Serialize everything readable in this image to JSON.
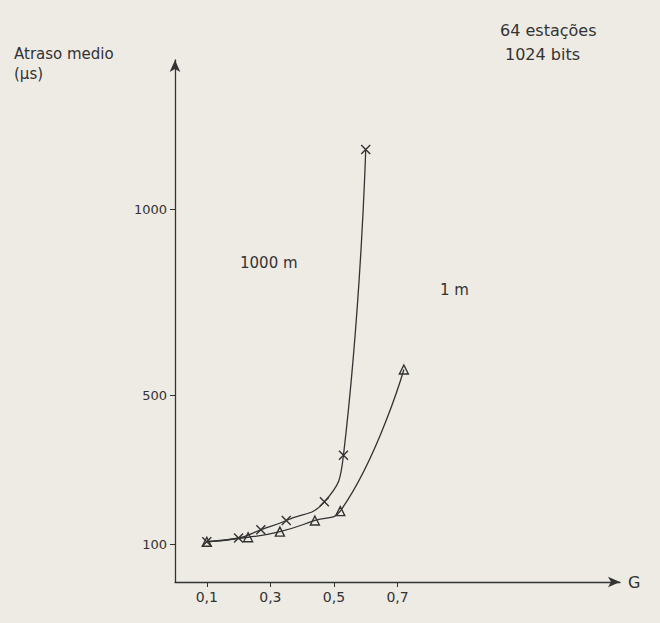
{
  "chart_data": {
    "type": "line",
    "annotations": [
      "64 estações",
      "1024 bits"
    ],
    "y_label": "Atraso medio (µs)",
    "x_label": "G",
    "xlim": [
      0,
      1.4
    ],
    "ylim": [
      0,
      1400
    ],
    "xticks": [
      {
        "value": 0.1,
        "label": "0,1"
      },
      {
        "value": 0.3,
        "label": "0,3"
      },
      {
        "value": 0.5,
        "label": "0,5"
      },
      {
        "value": 0.7,
        "label": "0,7"
      }
    ],
    "yticks": [
      100,
      500,
      1000
    ],
    "grid": false,
    "series": [
      {
        "name": "1000 m",
        "color": "#333333",
        "marker": "x",
        "line_style": "solid",
        "x": [
          0.1,
          0.2,
          0.27,
          0.35,
          0.47,
          0.53,
          0.6
        ],
        "values": [
          108,
          118,
          140,
          165,
          215,
          340,
          1160
        ]
      },
      {
        "name": "1 m",
        "color": "#333333",
        "marker": "triangle",
        "line_style": "solid",
        "x": [
          0.1,
          0.23,
          0.33,
          0.44,
          0.52,
          0.72
        ],
        "values": [
          108,
          120,
          135,
          165,
          190,
          570
        ]
      }
    ]
  }
}
